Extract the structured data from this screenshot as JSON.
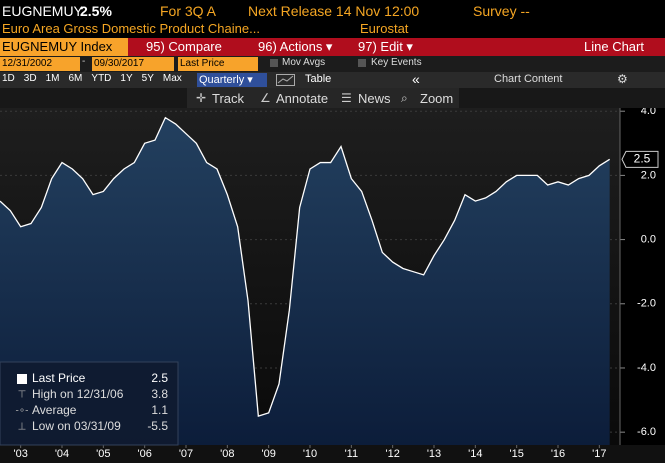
{
  "header": {
    "ticker": "EUGNEMUY",
    "value": "2.5%",
    "period": "For 3Q A",
    "next_release": "Next Release 14 Nov 12:00",
    "survey": "Survey --",
    "description": "Euro Area Gross Domestic Product Chaine...",
    "source": "Eurostat"
  },
  "menu": {
    "security": "EUGNEMUY Index",
    "items": [
      "95) Compare",
      "96) Actions ▾",
      "97) Edit ▾"
    ],
    "view": "Line Chart"
  },
  "controls": {
    "start_date": "12/31/2002",
    "end_date": "09/30/2017",
    "field": "Last Price",
    "options": [
      "Mov Avgs",
      "Key Events"
    ],
    "ranges": [
      "1D",
      "3D",
      "1M",
      "6M",
      "YTD",
      "1Y",
      "5Y",
      "Max"
    ],
    "frequency": "Quarterly ▾",
    "table": "Table",
    "collapse": "«",
    "chart_content": "Chart Content"
  },
  "tools": [
    "Track",
    "Annotate",
    "News",
    "Zoom"
  ],
  "chart_data": {
    "type": "line",
    "x": [
      2003.0,
      2003.25,
      2003.5,
      2003.75,
      2004.0,
      2004.25,
      2004.5,
      2004.75,
      2005.0,
      2005.25,
      2005.5,
      2005.75,
      2006.0,
      2006.25,
      2006.5,
      2006.75,
      2007.0,
      2007.25,
      2007.5,
      2007.75,
      2008.0,
      2008.25,
      2008.5,
      2008.75,
      2009.0,
      2009.25,
      2009.5,
      2009.75,
      2010.0,
      2010.25,
      2010.5,
      2010.75,
      2011.0,
      2011.25,
      2011.5,
      2011.75,
      2012.0,
      2012.25,
      2012.5,
      2012.75,
      2013.0,
      2013.25,
      2013.5,
      2013.75,
      2014.0,
      2014.25,
      2014.5,
      2014.75,
      2015.0,
      2015.25,
      2015.5,
      2015.75,
      2016.0,
      2016.25,
      2016.5,
      2016.75,
      2017.0,
      2017.25,
      2017.5,
      2017.75
    ],
    "series": [
      {
        "name": "Last Price",
        "color": "#ffffff",
        "values": [
          1.2,
          0.9,
          0.4,
          0.5,
          1.0,
          1.9,
          2.4,
          2.2,
          1.9,
          1.4,
          1.5,
          1.9,
          2.2,
          2.4,
          3.0,
          3.1,
          3.8,
          3.6,
          3.3,
          3.0,
          2.4,
          2.2,
          1.4,
          0.4,
          -1.9,
          -5.5,
          -5.4,
          -4.5,
          -2.2,
          1.0,
          2.2,
          2.4,
          2.4,
          2.9,
          1.9,
          1.5,
          0.6,
          -0.4,
          -0.7,
          -0.9,
          -1.0,
          -1.1,
          -0.5,
          0.0,
          0.6,
          1.4,
          1.2,
          1.3,
          1.5,
          1.8,
          2.0,
          2.0,
          2.0,
          1.7,
          1.8,
          1.7,
          1.9,
          2.0,
          2.3,
          2.5
        ]
      }
    ],
    "stats": [
      {
        "label": "High on 12/31/06",
        "value": 3.8
      },
      {
        "label": "Average",
        "value": 1.1
      },
      {
        "label": "Low on 03/31/09",
        "value": -5.5
      }
    ],
    "xlim": [
      2003.0,
      2018.0
    ],
    "xticks": [
      {
        "value": 2003.5,
        "label": "'03"
      },
      {
        "value": 2004.5,
        "label": "'04"
      },
      {
        "value": 2005.5,
        "label": "'05"
      },
      {
        "value": 2006.5,
        "label": "'06"
      },
      {
        "value": 2007.5,
        "label": "'07"
      },
      {
        "value": 2008.5,
        "label": "'08"
      },
      {
        "value": 2009.5,
        "label": "'09"
      },
      {
        "value": 2010.5,
        "label": "'10"
      },
      {
        "value": 2011.5,
        "label": "'11"
      },
      {
        "value": 2012.5,
        "label": "'12"
      },
      {
        "value": 2013.5,
        "label": "'13"
      },
      {
        "value": 2014.5,
        "label": "'14"
      },
      {
        "value": 2015.5,
        "label": "'15"
      },
      {
        "value": 2016.5,
        "label": "'16"
      },
      {
        "value": 2017.5,
        "label": "'17"
      }
    ],
    "ylim": [
      -6.4,
      4.1
    ],
    "yticks": [
      {
        "value": 4,
        "label": "4.0"
      },
      {
        "value": 2,
        "label": "2.0"
      },
      {
        "value": 0,
        "label": "0.0"
      },
      {
        "value": -2,
        "label": "-2.0"
      },
      {
        "value": -4,
        "label": "-4.0"
      },
      {
        "value": -6,
        "label": "-6.0"
      }
    ],
    "grid": true
  }
}
